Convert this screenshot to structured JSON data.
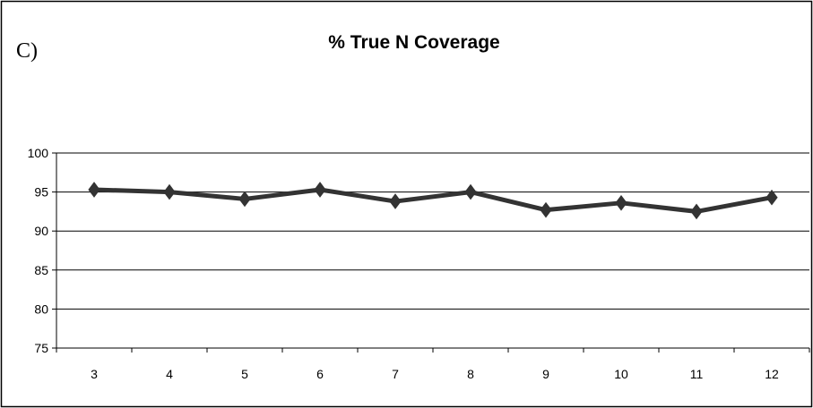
{
  "panel_label": "C)",
  "chart_data": {
    "type": "line",
    "title": "% True N Coverage",
    "xlabel": "",
    "ylabel": "",
    "categories": [
      "3",
      "4",
      "5",
      "6",
      "7",
      "8",
      "9",
      "10",
      "11",
      "12"
    ],
    "series": [
      {
        "values": [
          95.3,
          95.0,
          94.1,
          95.3,
          93.8,
          95.0,
          92.7,
          93.6,
          92.5,
          94.3
        ]
      }
    ],
    "ylim": [
      75,
      100
    ],
    "yticks": [
      75,
      80,
      85,
      90,
      95,
      100
    ],
    "grid": true,
    "legend": "none",
    "colors": {
      "line": "#333333",
      "marker": "#333333",
      "grid": "#000000"
    }
  }
}
